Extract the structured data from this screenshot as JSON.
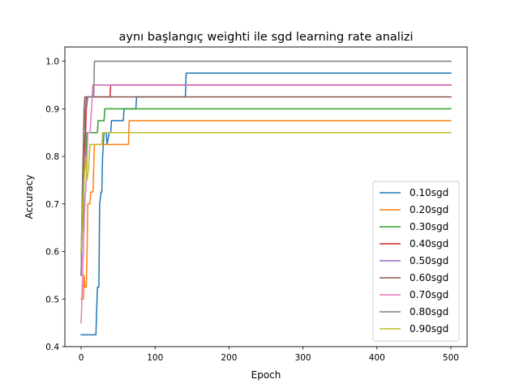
{
  "chart_data": {
    "type": "line",
    "title": "aynı başlangıç weighti ile sgd learning rate analizi",
    "xlabel": "Epoch",
    "ylabel": "Accuracy",
    "xlim": [
      -22,
      522
    ],
    "ylim": [
      0.4,
      1.03
    ],
    "xticks": [
      0,
      100,
      200,
      300,
      400,
      500
    ],
    "yticks": [
      0.4,
      0.5,
      0.6,
      0.7,
      0.8,
      0.9,
      1.0
    ],
    "xtick_labels": [
      "0",
      "100",
      "200",
      "300",
      "400",
      "500"
    ],
    "ytick_labels": [
      "0.4",
      "0.5",
      "0.6",
      "0.7",
      "0.8",
      "0.9",
      "1.0"
    ],
    "grid": false,
    "legend_position": "lower right",
    "series": [
      {
        "name": "0.10sgd",
        "color": "#1f77b4",
        "points": [
          [
            0,
            0.425
          ],
          [
            5,
            0.425
          ],
          [
            20,
            0.425
          ],
          [
            21,
            0.475
          ],
          [
            22,
            0.525
          ],
          [
            24,
            0.525
          ],
          [
            25,
            0.7
          ],
          [
            27,
            0.725
          ],
          [
            28,
            0.725
          ],
          [
            29,
            0.8
          ],
          [
            31,
            0.85
          ],
          [
            34,
            0.85
          ],
          [
            35,
            0.825
          ],
          [
            38,
            0.85
          ],
          [
            40,
            0.85
          ],
          [
            41,
            0.875
          ],
          [
            57,
            0.875
          ],
          [
            58,
            0.9
          ],
          [
            74,
            0.9
          ],
          [
            75,
            0.925
          ],
          [
            141,
            0.925
          ],
          [
            142,
            0.975
          ],
          [
            500,
            0.975
          ]
        ]
      },
      {
        "name": "0.20sgd",
        "color": "#ff7f0e",
        "points": [
          [
            0,
            0.5
          ],
          [
            3,
            0.5
          ],
          [
            4,
            0.55
          ],
          [
            5,
            0.525
          ],
          [
            7,
            0.525
          ],
          [
            8,
            0.6
          ],
          [
            9,
            0.7
          ],
          [
            12,
            0.7
          ],
          [
            13,
            0.725
          ],
          [
            16,
            0.725
          ],
          [
            17,
            0.775
          ],
          [
            18,
            0.825
          ],
          [
            64,
            0.825
          ],
          [
            65,
            0.875
          ],
          [
            500,
            0.875
          ]
        ]
      },
      {
        "name": "0.30sgd",
        "color": "#2ca02c",
        "points": [
          [
            0,
            0.6
          ],
          [
            2,
            0.65
          ],
          [
            4,
            0.75
          ],
          [
            6,
            0.8
          ],
          [
            8,
            0.85
          ],
          [
            22,
            0.85
          ],
          [
            23,
            0.875
          ],
          [
            31,
            0.875
          ],
          [
            32,
            0.9
          ],
          [
            500,
            0.9
          ]
        ]
      },
      {
        "name": "0.40sgd",
        "color": "#d62728",
        "points": [
          [
            0,
            0.55
          ],
          [
            2,
            0.7
          ],
          [
            4,
            0.8
          ],
          [
            6,
            0.85
          ],
          [
            7,
            0.9
          ],
          [
            9,
            0.925
          ],
          [
            39,
            0.925
          ],
          [
            40,
            0.95
          ],
          [
            500,
            0.95
          ]
        ]
      },
      {
        "name": "0.50sgd",
        "color": "#9467bd",
        "points": [
          [
            0,
            0.55
          ],
          [
            2,
            0.75
          ],
          [
            4,
            0.85
          ],
          [
            6,
            0.9
          ],
          [
            7,
            0.925
          ],
          [
            15,
            0.925
          ],
          [
            16,
            0.95
          ],
          [
            500,
            0.95
          ]
        ]
      },
      {
        "name": "0.60sgd",
        "color": "#8c564b",
        "points": [
          [
            0,
            0.6
          ],
          [
            2,
            0.75
          ],
          [
            4,
            0.9
          ],
          [
            5,
            0.925
          ],
          [
            500,
            0.925
          ]
        ]
      },
      {
        "name": "0.70sgd",
        "color": "#e377c2",
        "points": [
          [
            0,
            0.45
          ],
          [
            1,
            0.5
          ],
          [
            3,
            0.6
          ],
          [
            5,
            0.7
          ],
          [
            7,
            0.75
          ],
          [
            9,
            0.85
          ],
          [
            12,
            0.85
          ],
          [
            14,
            0.9
          ],
          [
            16,
            0.95
          ],
          [
            500,
            0.95
          ]
        ]
      },
      {
        "name": "0.80sgd",
        "color": "#7f7f7f",
        "points": [
          [
            0,
            0.55
          ],
          [
            2,
            0.7
          ],
          [
            4,
            0.85
          ],
          [
            6,
            0.9
          ],
          [
            9,
            0.925
          ],
          [
            17,
            0.925
          ],
          [
            18,
            1.0
          ],
          [
            500,
            1.0
          ]
        ]
      },
      {
        "name": "0.90sgd",
        "color": "#bcbd22",
        "points": [
          [
            0,
            0.6
          ],
          [
            2,
            0.7
          ],
          [
            4,
            0.75
          ],
          [
            6,
            0.8
          ],
          [
            8,
            0.75
          ],
          [
            10,
            0.775
          ],
          [
            12,
            0.825
          ],
          [
            28,
            0.825
          ],
          [
            29,
            0.85
          ],
          [
            500,
            0.85
          ]
        ]
      }
    ]
  }
}
